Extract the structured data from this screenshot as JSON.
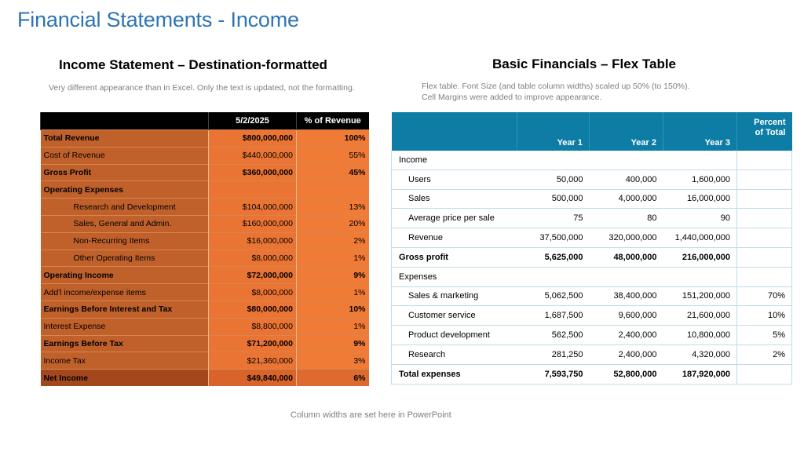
{
  "slide": {
    "title": "Financial Statements - Income",
    "footer": "Column widths are set here in PowerPoint"
  },
  "income_statement": {
    "heading": "Income Statement – Destination-formatted",
    "note": "Very different appearance than in Excel. Only the text is updated, not the formatting.",
    "headers": [
      "",
      "5/2/2025",
      "% of Revenue"
    ],
    "rows": [
      {
        "label": "Total Revenue",
        "amount": "$800,000,000",
        "pct": "100%"
      },
      {
        "label": "Cost of Revenue",
        "amount": "$440,000,000",
        "pct": "55%"
      },
      {
        "label": "Gross Profit",
        "amount": "$360,000,000",
        "pct": "45%"
      },
      {
        "label": "Operating Expenses",
        "amount": "",
        "pct": ""
      },
      {
        "label": "Research and Development",
        "amount": "$104,000,000",
        "pct": "13%"
      },
      {
        "label": "Sales, General and Admin.",
        "amount": "$160,000,000",
        "pct": "20%"
      },
      {
        "label": "Non-Recurring Items",
        "amount": "$16,000,000",
        "pct": "2%"
      },
      {
        "label": "Other Operating Items",
        "amount": "$8,000,000",
        "pct": "1%"
      },
      {
        "label": "Operating Income",
        "amount": "$72,000,000",
        "pct": "9%"
      },
      {
        "label": "Add'l income/expense items",
        "amount": "$8,000,000",
        "pct": "1%"
      },
      {
        "label": "Earnings Before Interest and Tax",
        "amount": "$80,000,000",
        "pct": "10%"
      },
      {
        "label": "Interest Expense",
        "amount": "$8,800,000",
        "pct": "1%"
      },
      {
        "label": "Earnings Before Tax",
        "amount": "$71,200,000",
        "pct": "9%"
      },
      {
        "label": "Income Tax",
        "amount": "$21,360,000",
        "pct": "3%"
      },
      {
        "label": "Net Income",
        "amount": "$49,840,000",
        "pct": "6%"
      }
    ]
  },
  "flex_table": {
    "heading": "Basic Financials – Flex Table",
    "note_line1": "Flex table. Font Size (and table column widths) scaled up 50% (to 150%).",
    "note_line2": "Cell Margins were added to improve appearance.",
    "headers": {
      "label": "",
      "year1": "Year 1",
      "year2": "Year 2",
      "year3": "Year 3",
      "pct_line1": "Percent",
      "pct_line2": "of Total"
    },
    "rows": [
      {
        "label": "Income",
        "y1": "",
        "y2": "",
        "y3": "",
        "pct": ""
      },
      {
        "label": "Users",
        "y1": "50,000",
        "y2": "400,000",
        "y3": "1,600,000",
        "pct": ""
      },
      {
        "label": "Sales",
        "y1": "500,000",
        "y2": "4,000,000",
        "y3": "16,000,000",
        "pct": ""
      },
      {
        "label": "Average price per sale",
        "y1": "75",
        "y2": "80",
        "y3": "90",
        "pct": ""
      },
      {
        "label": "Revenue",
        "y1": "37,500,000",
        "y2": "320,000,000",
        "y3": "1,440,000,000",
        "pct": ""
      },
      {
        "label": "Gross profit",
        "y1": "5,625,000",
        "y2": "48,000,000",
        "y3": "216,000,000",
        "pct": ""
      },
      {
        "label": "Expenses",
        "y1": "",
        "y2": "",
        "y3": "",
        "pct": ""
      },
      {
        "label": "Sales & marketing",
        "y1": "5,062,500",
        "y2": "38,400,000",
        "y3": "151,200,000",
        "pct": "70%"
      },
      {
        "label": "Customer service",
        "y1": "1,687,500",
        "y2": "9,600,000",
        "y3": "21,600,000",
        "pct": "10%"
      },
      {
        "label": "Product development",
        "y1": "562,500",
        "y2": "2,400,000",
        "y3": "10,800,000",
        "pct": "5%"
      },
      {
        "label": "Research",
        "y1": "281,250",
        "y2": "2,400,000",
        "y3": "4,320,000",
        "pct": "2%"
      },
      {
        "label": "Total expenses",
        "y1": "7,593,750",
        "y2": "52,800,000",
        "y3": "187,920,000",
        "pct": ""
      }
    ]
  }
}
